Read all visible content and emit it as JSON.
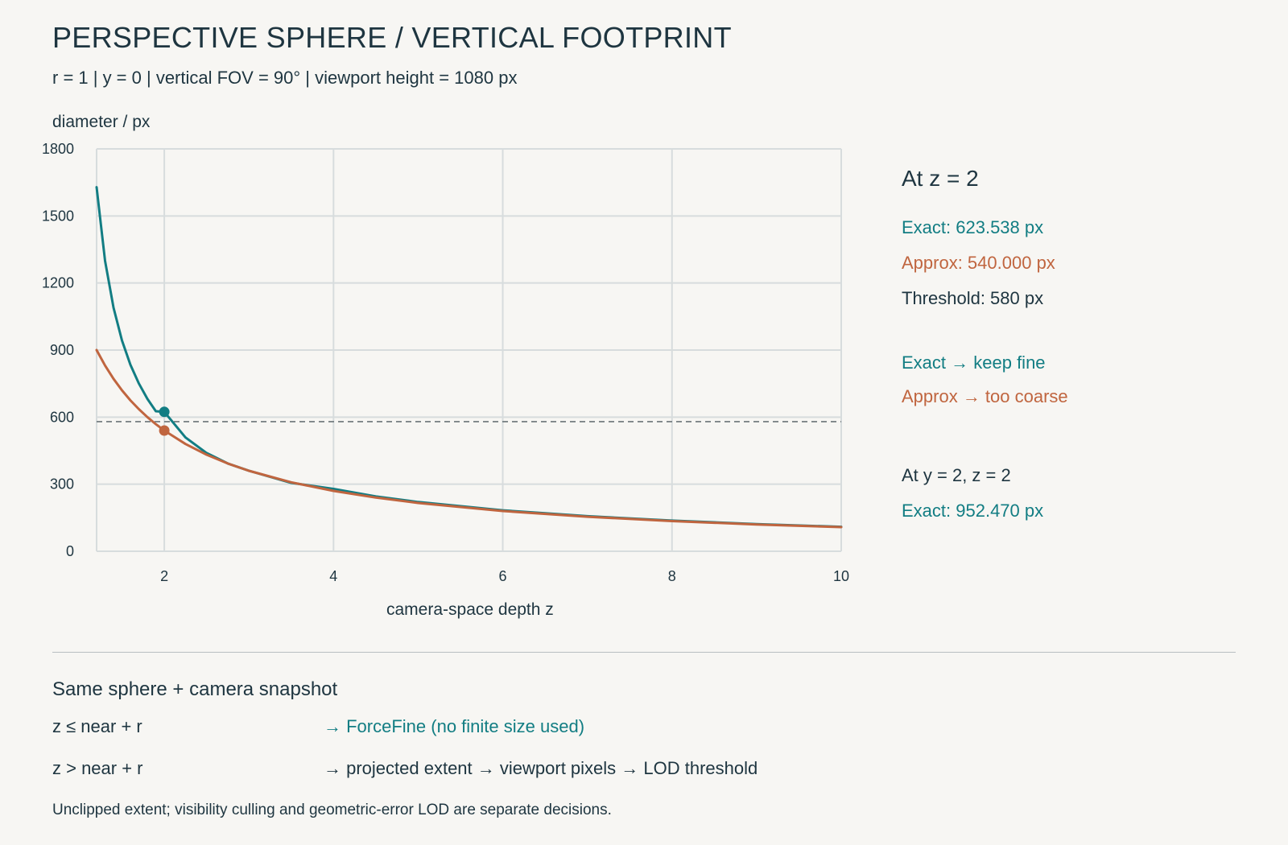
{
  "header": {
    "title": "PERSPECTIVE SPHERE / VERTICAL FOOTPRINT",
    "subtitle": "r = 1 | y = 0 | vertical FOV = 90° | viewport height = 1080 px"
  },
  "chart_data": {
    "type": "line",
    "ylabel": "diameter / px",
    "xlabel": "camera-space depth z",
    "xlim": [
      1.2,
      10
    ],
    "ylim": [
      0,
      1800
    ],
    "x_ticks": [
      2,
      4,
      6,
      8,
      10
    ],
    "y_ticks": [
      0,
      300,
      600,
      900,
      1200,
      1500,
      1800
    ],
    "grid": true,
    "colors": {
      "exact": "#127d83",
      "approx": "#c0653f",
      "threshold": "#6b7478",
      "grid": "#d7dcdd"
    },
    "series": [
      {
        "key": "exact",
        "x": [
          1.2,
          1.3,
          1.4,
          1.5,
          1.6,
          1.7,
          1.8,
          1.9,
          2.0,
          2.25,
          2.5,
          2.75,
          3.0,
          3.5,
          4.0,
          4.5,
          5.0,
          6.0,
          7.0,
          8.0,
          9.0,
          10.0
        ],
        "values": [
          1628.5,
          1299.4,
          1090.0,
          943.3,
          834.3,
          749.8,
          682.0,
          626.5,
          623.5,
          508.9,
          439.5,
          392.9,
          360.5,
          305.9,
          278.9,
          245.5,
          220.5,
          183.3,
          156.9,
          137.0,
          121.6,
          109.3
        ]
      },
      {
        "key": "approx",
        "x": [
          1.2,
          1.3,
          1.4,
          1.5,
          1.6,
          1.7,
          1.8,
          1.9,
          2.0,
          2.25,
          2.5,
          2.75,
          3.0,
          3.5,
          4.0,
          4.5,
          5.0,
          6.0,
          7.0,
          8.0,
          9.0,
          10.0
        ],
        "values": [
          900.0,
          830.8,
          771.4,
          720.0,
          675.0,
          635.3,
          600.0,
          568.4,
          540.0,
          480.0,
          432.0,
          392.7,
          360.0,
          308.6,
          270.0,
          240.0,
          216.0,
          180.0,
          154.3,
          135.0,
          120.0,
          108.0
        ]
      }
    ],
    "threshold": 580,
    "markers": [
      {
        "key": "exact",
        "x": 2,
        "y": 623.538
      },
      {
        "key": "approx",
        "x": 2,
        "y": 540.0
      }
    ]
  },
  "side_panel": {
    "heading": "At z = 2",
    "exact": "Exact: 623.538 px",
    "approx": "Approx: 540.000 px",
    "threshold": "Threshold: 580 px",
    "exact_verdict": "Exact → keep fine",
    "approx_verdict": "Approx → too coarse",
    "second_heading": "At y = 2, z = 2",
    "second_exact": "Exact: 952.470 px"
  },
  "rules": {
    "title": "Same sphere + camera snapshot",
    "items": [
      {
        "condition": "z ≤ near + r",
        "result": "→ ForceFine (no finite size used)"
      },
      {
        "condition": "z > near + r",
        "result": "→ projected extent → viewport pixels → LOD threshold"
      }
    ]
  },
  "footnote": "Unclipped extent; visibility culling and geometric-error LOD are separate decisions."
}
